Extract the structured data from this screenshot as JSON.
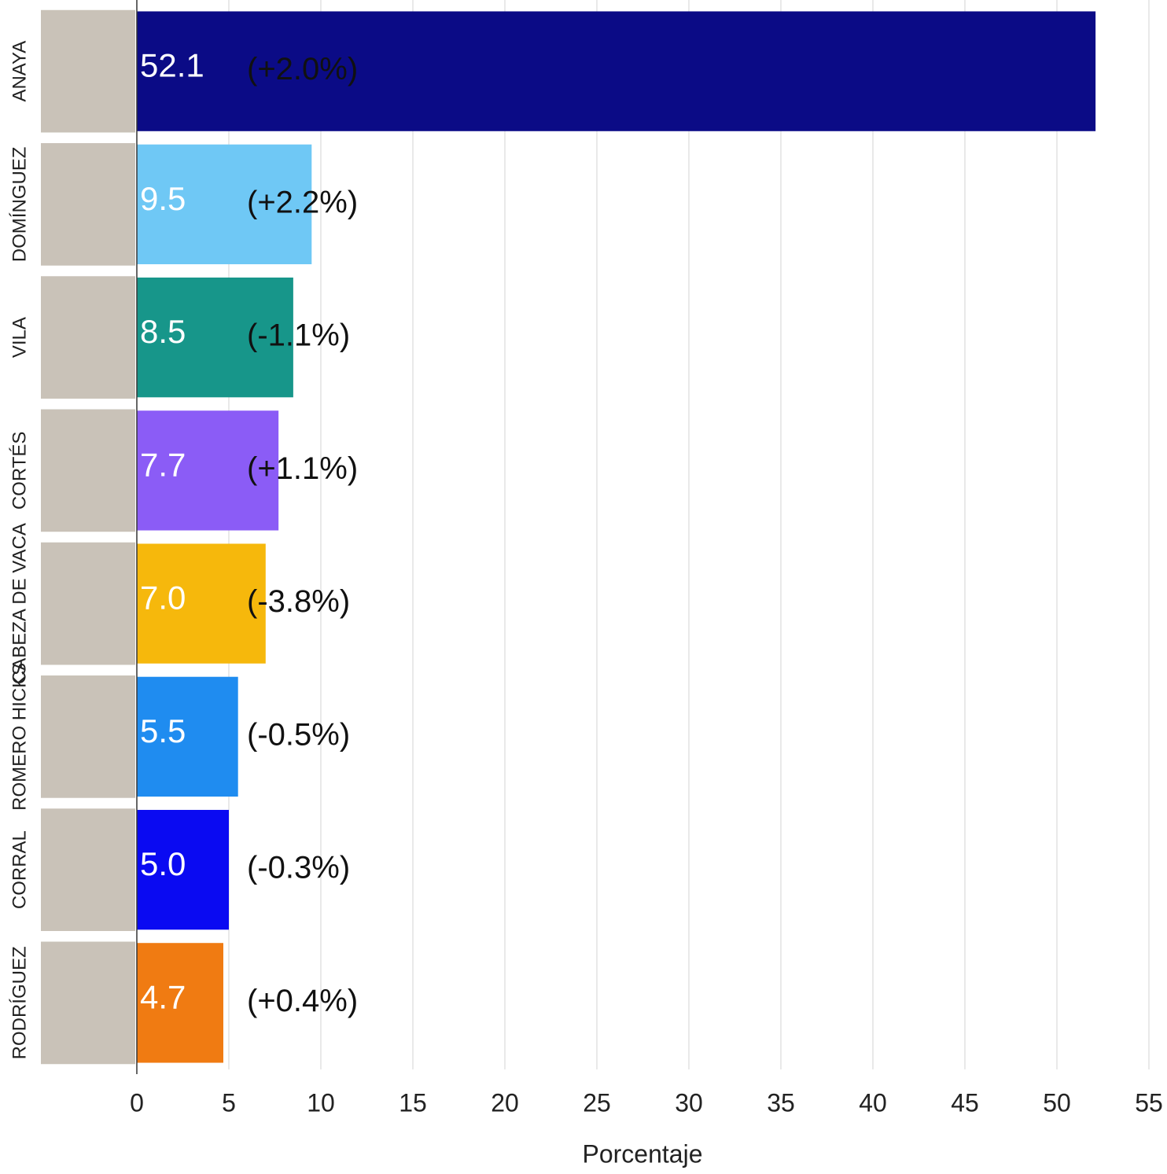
{
  "chart_data": {
    "type": "barh",
    "x_label": "Porcentaje",
    "categories": [
      "ANAYA",
      "DOMÍNGUEZ",
      "VILA",
      "CORTÉS",
      "CABEZA DE VACA",
      "ROMERO HICKS",
      "CORRAL",
      "RODRÍGUEZ"
    ],
    "values": [
      52.1,
      9.5,
      8.5,
      7.7,
      7.0,
      5.5,
      5.0,
      4.7
    ],
    "value_labels": [
      "52.1",
      "9.5",
      "8.5",
      "7.7",
      "7.0",
      "5.5",
      "5.0",
      "4.7"
    ],
    "change_labels": [
      "(+2.0%)",
      "(+2.2%)",
      "(-1.1%)",
      "(+1.1%)",
      "(-3.8%)",
      "(-0.5%)",
      "(-0.3%)",
      "(+0.4%)"
    ],
    "colors": [
      "#0b0b86",
      "#6fc8f5",
      "#17968a",
      "#8b5cf6",
      "#f6b80c",
      "#1f8cf0",
      "#0a0af2",
      "#f07b12"
    ],
    "xlim": [
      0,
      55
    ],
    "xticks": [
      0,
      5,
      10,
      15,
      20,
      25,
      30,
      35,
      40,
      45,
      50,
      55
    ],
    "grid": true
  }
}
